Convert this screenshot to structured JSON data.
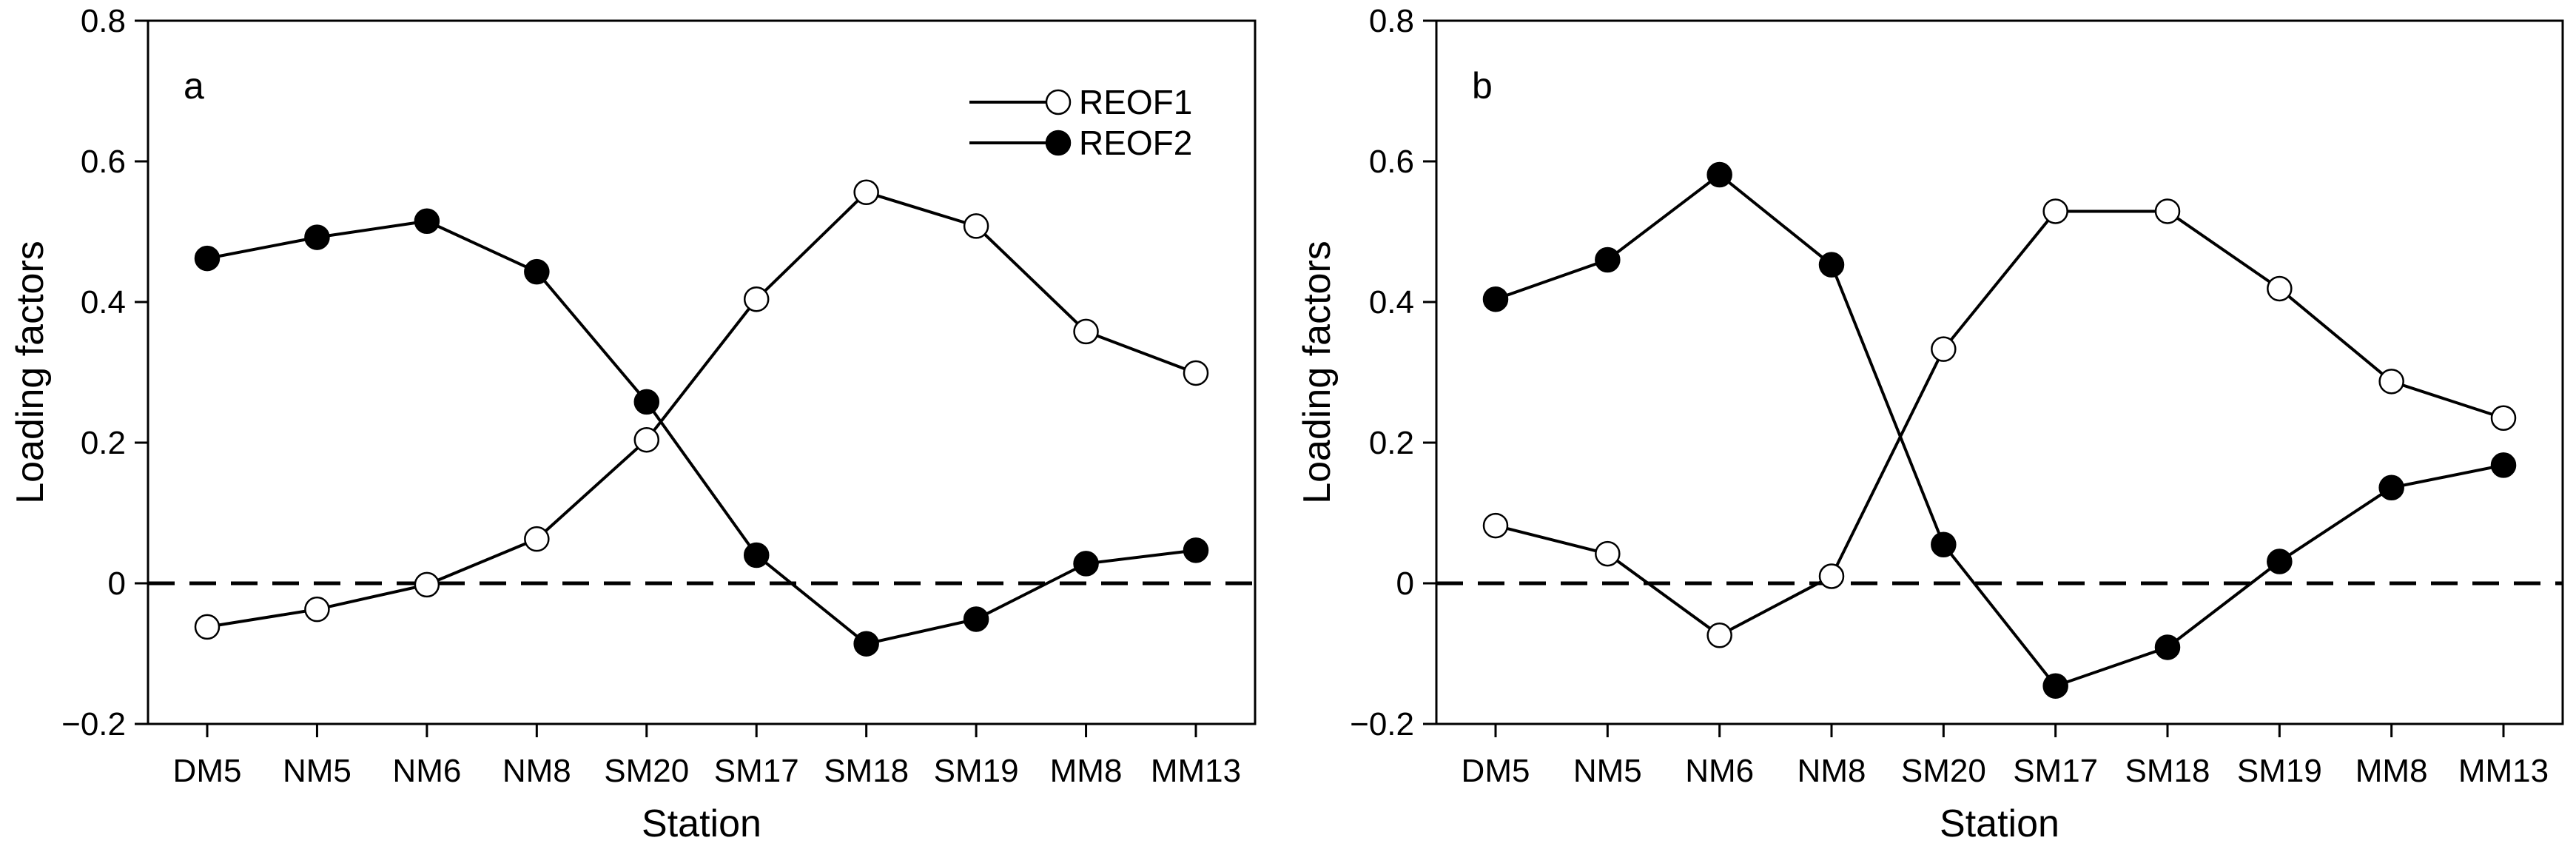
{
  "chart_data": [
    {
      "type": "line",
      "panel_label": "a",
      "xlabel": "Station",
      "ylabel": "Loading factors",
      "categories": [
        "DM5",
        "NM5",
        "NM6",
        "NM8",
        "SM20",
        "SM17",
        "SM18",
        "SM19",
        "MM8",
        "MM13"
      ],
      "ylim": [
        -0.2,
        0.8
      ],
      "yticks": [
        "−0.2",
        "0",
        "0.2",
        "0.4",
        "0.6",
        "0.8"
      ],
      "reference_line": 0,
      "legend": {
        "position": "top-right"
      },
      "series": [
        {
          "name": "REOF1",
          "marker": "open-circle",
          "values": [
            -0.062,
            -0.037,
            -0.002,
            0.063,
            0.204,
            0.404,
            0.556,
            0.508,
            0.358,
            0.299
          ]
        },
        {
          "name": "REOF2",
          "marker": "filled-circle",
          "values": [
            0.462,
            0.492,
            0.515,
            0.443,
            0.258,
            0.04,
            -0.086,
            -0.051,
            0.028,
            0.047
          ]
        }
      ]
    },
    {
      "type": "line",
      "panel_label": "b",
      "xlabel": "Station",
      "ylabel": "Loading factors",
      "categories": [
        "DM5",
        "NM5",
        "NM6",
        "NM8",
        "SM20",
        "SM17",
        "SM18",
        "SM19",
        "MM8",
        "MM13"
      ],
      "ylim": [
        -0.2,
        0.8
      ],
      "yticks": [
        "−0.2",
        "0",
        "0.2",
        "0.4",
        "0.6",
        "0.8"
      ],
      "reference_line": 0,
      "series": [
        {
          "name": "REOF1",
          "marker": "open-circle",
          "values": [
            0.082,
            0.042,
            -0.074,
            0.01,
            0.333,
            0.529,
            0.529,
            0.419,
            0.287,
            0.235
          ]
        },
        {
          "name": "REOF2",
          "marker": "filled-circle",
          "values": [
            0.404,
            0.46,
            0.581,
            0.453,
            0.055,
            -0.146,
            -0.091,
            0.031,
            0.136,
            0.168
          ]
        }
      ]
    }
  ]
}
